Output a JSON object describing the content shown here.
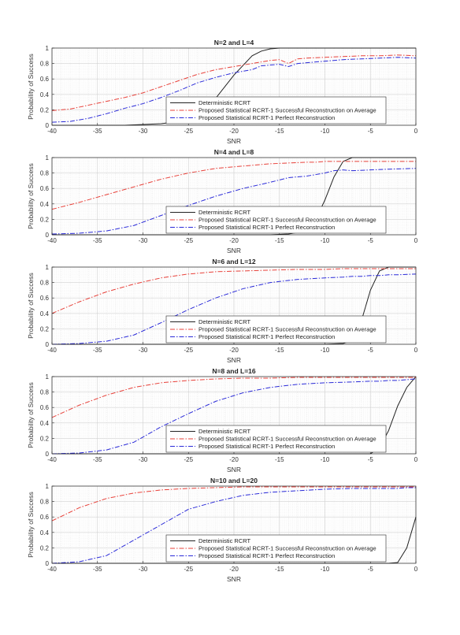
{
  "figure": {
    "xlabel": "SNR",
    "ylabel": "Probability of Success",
    "xticks": [
      "-40",
      "-35",
      "-30",
      "-25",
      "-20",
      "-15",
      "-10",
      "-5",
      "0"
    ],
    "yticks": [
      "0",
      "0.2",
      "0.4",
      "0.6",
      "0.8",
      "1"
    ],
    "legend": [
      "Deterministic RCRT",
      "Proposed Statistical RCRT-1 Successful Reconstruction on Average",
      "Proposed Statistical RCRT-1 Perfect Reconstruction"
    ],
    "colors": {
      "deterministic": "#222222",
      "average": "#e8413a",
      "perfect": "#2a2ad8"
    }
  },
  "chart_data": [
    {
      "type": "line",
      "title": "N=2 and L=4",
      "xlabel": "SNR",
      "ylabel": "Probability of Success",
      "xlim": [
        -40,
        0
      ],
      "ylim": [
        0,
        1
      ],
      "grid": true,
      "legend_position": "lower-right",
      "x": [
        -40,
        -38,
        -36,
        -34,
        -32,
        -30,
        -28,
        -26,
        -24,
        -22,
        -20,
        -18,
        -17,
        -16,
        -15,
        -14,
        -13,
        -12,
        -10,
        -8,
        -6,
        -4,
        -2,
        0
      ],
      "series": [
        {
          "name": "Deterministic RCRT",
          "style": "solid",
          "values": [
            0,
            0,
            0,
            0,
            0,
            0.01,
            0.02,
            0.05,
            0.15,
            0.35,
            0.65,
            0.9,
            0.96,
            0.99,
            1,
            1,
            1,
            1,
            1,
            1,
            1,
            1,
            1,
            1
          ]
        },
        {
          "name": "Proposed Statistical RCRT-1 Successful Reconstruction on Average",
          "style": "dashdot",
          "values": [
            0.19,
            0.21,
            0.26,
            0.31,
            0.36,
            0.42,
            0.5,
            0.58,
            0.66,
            0.72,
            0.76,
            0.8,
            0.82,
            0.84,
            0.85,
            0.8,
            0.86,
            0.87,
            0.88,
            0.89,
            0.9,
            0.9,
            0.91,
            0.9
          ]
        },
        {
          "name": "Proposed Statistical RCRT-1 Perfect Reconstruction",
          "style": "dashdot",
          "values": [
            0.04,
            0.05,
            0.09,
            0.15,
            0.22,
            0.28,
            0.36,
            0.45,
            0.55,
            0.62,
            0.68,
            0.72,
            0.77,
            0.78,
            0.79,
            0.76,
            0.8,
            0.81,
            0.83,
            0.85,
            0.86,
            0.87,
            0.88,
            0.87
          ]
        }
      ]
    },
    {
      "type": "line",
      "title": "N=4 and L=8",
      "xlabel": "SNR",
      "ylabel": "Probability of Success",
      "xlim": [
        -40,
        0
      ],
      "ylim": [
        0,
        1
      ],
      "grid": true,
      "legend_position": "lower-right",
      "x": [
        -40,
        -37,
        -34,
        -31,
        -28,
        -25,
        -22,
        -19,
        -16,
        -14,
        -12,
        -11,
        -10,
        -9,
        -8,
        -7,
        -5,
        -3,
        0
      ],
      "series": [
        {
          "name": "Deterministic RCRT",
          "style": "solid",
          "values": [
            0,
            0,
            0,
            0,
            0,
            0,
            0,
            0,
            0,
            0.01,
            0.05,
            0.2,
            0.45,
            0.75,
            0.95,
            1,
            1,
            1,
            1
          ]
        },
        {
          "name": "Proposed Statistical RCRT-1 Successful Reconstruction on Average",
          "style": "dashdot",
          "values": [
            0.33,
            0.42,
            0.52,
            0.62,
            0.72,
            0.8,
            0.86,
            0.89,
            0.92,
            0.93,
            0.94,
            0.94,
            0.95,
            0.95,
            0.95,
            0.95,
            0.95,
            0.95,
            0.95
          ]
        },
        {
          "name": "Proposed Statistical RCRT-1 Perfect Reconstruction",
          "style": "dashdot",
          "values": [
            0.01,
            0.02,
            0.05,
            0.12,
            0.25,
            0.38,
            0.5,
            0.6,
            0.68,
            0.74,
            0.76,
            0.78,
            0.8,
            0.83,
            0.84,
            0.83,
            0.84,
            0.85,
            0.86
          ]
        }
      ]
    },
    {
      "type": "line",
      "title": "N=6 and L=12",
      "xlabel": "SNR",
      "ylabel": "Probability of Success",
      "xlim": [
        -40,
        0
      ],
      "ylim": [
        0,
        1
      ],
      "grid": true,
      "legend_position": "lower-right",
      "x": [
        -40,
        -37,
        -34,
        -31,
        -28,
        -25,
        -22,
        -19,
        -16,
        -13,
        -10,
        -8,
        -7,
        -6,
        -5,
        -4,
        -3,
        -2,
        0
      ],
      "series": [
        {
          "name": "Deterministic RCRT",
          "style": "solid",
          "values": [
            0,
            0,
            0,
            0,
            0,
            0,
            0,
            0,
            0,
            0,
            0,
            0.01,
            0.05,
            0.3,
            0.7,
            0.95,
            1,
            1,
            1
          ]
        },
        {
          "name": "Proposed Statistical RCRT-1 Successful Reconstruction on Average",
          "style": "dashdot",
          "values": [
            0.4,
            0.55,
            0.68,
            0.78,
            0.86,
            0.91,
            0.94,
            0.95,
            0.96,
            0.97,
            0.97,
            0.98,
            0.98,
            0.98,
            0.98,
            0.98,
            0.98,
            0.98,
            0.98
          ]
        },
        {
          "name": "Proposed Statistical RCRT-1 Perfect Reconstruction",
          "style": "dashdot",
          "values": [
            0,
            0.01,
            0.04,
            0.12,
            0.28,
            0.45,
            0.6,
            0.72,
            0.8,
            0.84,
            0.86,
            0.87,
            0.88,
            0.88,
            0.89,
            0.89,
            0.9,
            0.9,
            0.91
          ]
        }
      ]
    },
    {
      "type": "line",
      "title": "N=8 and L=16",
      "xlabel": "SNR",
      "ylabel": "Probability of Success",
      "xlim": [
        -40,
        0
      ],
      "ylim": [
        0,
        1
      ],
      "grid": true,
      "legend_position": "lower-right",
      "x": [
        -40,
        -37,
        -34,
        -31,
        -28,
        -25,
        -22,
        -19,
        -16,
        -13,
        -10,
        -7,
        -5,
        -4,
        -3,
        -2,
        -1,
        0
      ],
      "series": [
        {
          "name": "Deterministic RCRT",
          "style": "solid",
          "values": [
            0,
            0,
            0,
            0,
            0,
            0,
            0,
            0,
            0,
            0,
            0,
            0,
            0,
            0.08,
            0.3,
            0.62,
            0.86,
            1
          ]
        },
        {
          "name": "Proposed Statistical RCRT-1 Successful Reconstruction on Average",
          "style": "dashdot",
          "values": [
            0.47,
            0.63,
            0.76,
            0.86,
            0.92,
            0.95,
            0.97,
            0.98,
            0.98,
            0.99,
            0.99,
            0.99,
            0.99,
            0.99,
            0.99,
            0.99,
            0.99,
            0.99
          ]
        },
        {
          "name": "Proposed Statistical RCRT-1 Perfect Reconstruction",
          "style": "dashdot",
          "values": [
            0,
            0.01,
            0.05,
            0.15,
            0.35,
            0.52,
            0.68,
            0.79,
            0.86,
            0.9,
            0.92,
            0.93,
            0.94,
            0.94,
            0.95,
            0.95,
            0.96,
            0.97
          ]
        }
      ]
    },
    {
      "type": "line",
      "title": "N=10 and L=20",
      "xlabel": "SNR",
      "ylabel": "Probability of Success",
      "xlim": [
        -40,
        0
      ],
      "ylim": [
        0,
        1
      ],
      "grid": true,
      "legend_position": "lower-right",
      "x": [
        -40,
        -37,
        -34,
        -31,
        -28,
        -25,
        -22,
        -19,
        -16,
        -13,
        -10,
        -7,
        -4,
        -3,
        -2,
        -1,
        -0.5,
        0
      ],
      "series": [
        {
          "name": "Deterministic RCRT",
          "style": "solid",
          "values": [
            0,
            0,
            0,
            0,
            0,
            0,
            0,
            0,
            0,
            0,
            0,
            0,
            0,
            0,
            0.01,
            0.2,
            0.4,
            0.6
          ]
        },
        {
          "name": "Proposed Statistical RCRT-1 Successful Reconstruction on Average",
          "style": "dashdot",
          "values": [
            0.55,
            0.72,
            0.84,
            0.91,
            0.95,
            0.97,
            0.98,
            0.99,
            0.99,
            0.99,
            0.99,
            0.99,
            0.99,
            0.99,
            0.99,
            0.99,
            0.99,
            0.99
          ]
        },
        {
          "name": "Proposed Statistical RCRT-1 Perfect Reconstruction",
          "style": "dashdot",
          "values": [
            0,
            0.02,
            0.1,
            0.3,
            0.5,
            0.7,
            0.8,
            0.88,
            0.92,
            0.94,
            0.96,
            0.97,
            0.97,
            0.97,
            0.97,
            0.98,
            0.98,
            0.98
          ]
        }
      ]
    }
  ]
}
